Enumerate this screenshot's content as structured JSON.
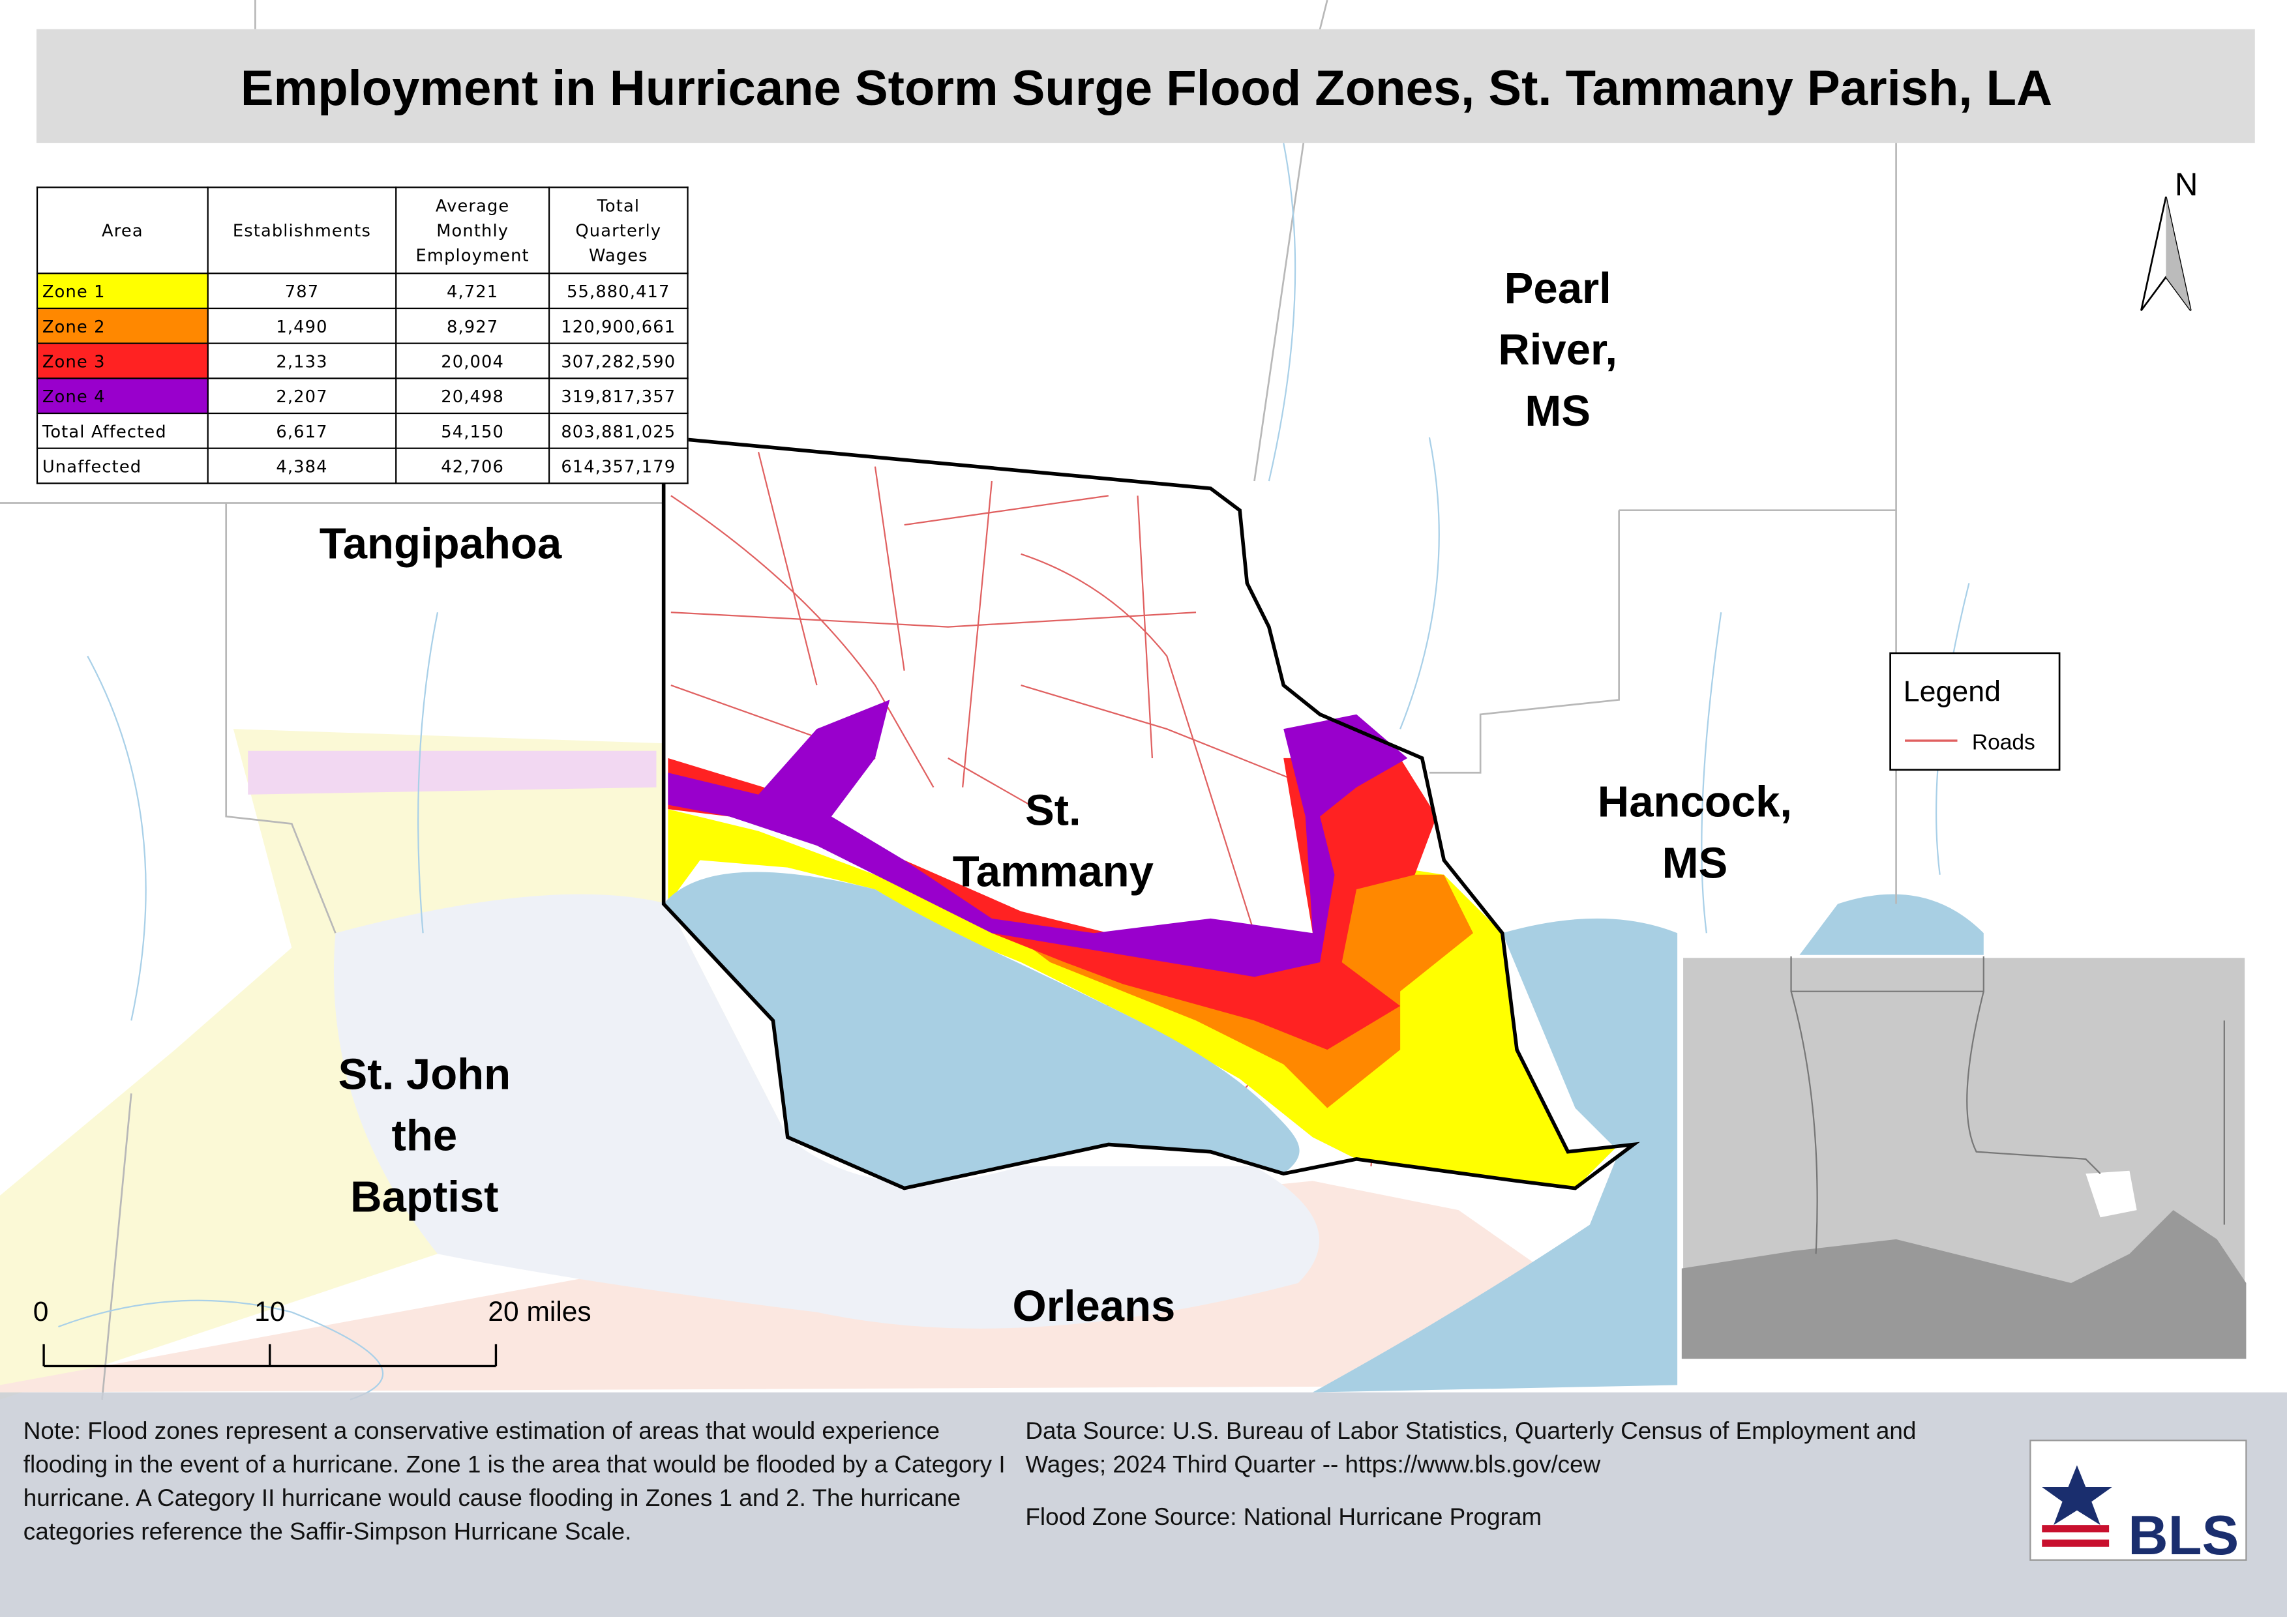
{
  "title": "Employment in Hurricane Storm Surge Flood Zones, St. Tammany Parish, LA",
  "table": {
    "header": [
      "Area",
      "Establishments",
      "Average Monthly Employment",
      "Total Quarterly Wages"
    ],
    "rows": [
      [
        "Zone 1",
        "787",
        "4,721",
        "55,880,417"
      ],
      [
        "Zone 2",
        "1,490",
        "8,927",
        "120,900,661"
      ],
      [
        "Zone 3",
        "2,133",
        "20,004",
        "307,282,590"
      ],
      [
        "Zone 4",
        "2,207",
        "20,498",
        "319,817,357"
      ],
      [
        "Total Affected",
        "6,617",
        "54,150",
        "803,881,025"
      ],
      [
        "Unaffected",
        "4,384",
        "42,706",
        "614,357,179"
      ]
    ],
    "row_colors": [
      "#ffff00",
      "#ff8800",
      "#ff2222",
      "#9900cc",
      "#ffffff",
      "#ffffff"
    ]
  },
  "places": [
    {
      "lines": [
        "Tangipahoa"
      ]
    },
    {
      "lines": [
        "Pearl",
        "River,",
        "MS"
      ]
    },
    {
      "lines": [
        "Hancock,",
        "MS"
      ]
    },
    {
      "lines": [
        "St.",
        "Tammany"
      ]
    },
    {
      "lines": [
        "St. John",
        "the",
        "Baptist"
      ]
    },
    {
      "lines": [
        "Orleans"
      ]
    }
  ],
  "legend": {
    "title": "Legend",
    "items": [
      {
        "name": "Roads",
        "color": "#e06060"
      }
    ]
  },
  "north": "N",
  "scale_bar": [
    "0",
    "10",
    "20 miles"
  ],
  "note": "Note: Flood zones represent a conservative estimation of areas that would experience flooding in the event of a hurricane. Zone 1 is the area that would be flooded by a Category I hurricane. A Category II hurricane would cause flooding in Zones 1 and 2. The hurricane categories reference the Saffir-Simpson Hurricane Scale.",
  "data_source": "Data Source: U.S. Bureau of Labor Statistics, Quarterly Census of Employment and Wages; 2024 Third Quarter -- https://www.bls.gov/cew",
  "flood_source": "Flood Zone Source: National Hurricane Program",
  "logo": "BLS"
}
